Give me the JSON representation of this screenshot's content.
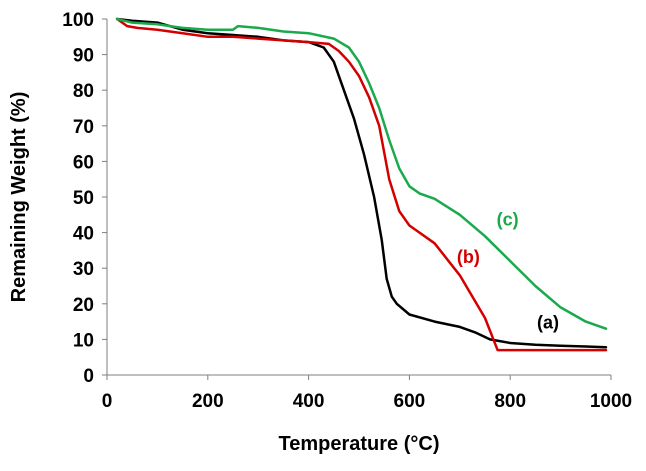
{
  "chart_data": {
    "type": "line",
    "title": "",
    "xlabel": "Temperature (°C)",
    "ylabel": "Remaining Weight (%)",
    "xlim": [
      0,
      1000
    ],
    "ylim": [
      0,
      100
    ],
    "x_ticks": [
      "0",
      "200",
      "400",
      "600",
      "800",
      "1000"
    ],
    "y_ticks": [
      "0",
      "10",
      "20",
      "30",
      "40",
      "50",
      "60",
      "70",
      "80",
      "90",
      "100"
    ],
    "grid": false,
    "legend": "none",
    "series": [
      {
        "name": "(a)",
        "color": "#000000",
        "x": [
          20,
          50,
          100,
          150,
          200,
          250,
          300,
          350,
          400,
          430,
          450,
          470,
          490,
          510,
          530,
          545,
          555,
          565,
          575,
          600,
          650,
          700,
          730,
          760,
          800,
          850,
          900,
          950,
          990
        ],
        "y": [
          100,
          99.5,
          99,
          97,
          96,
          95.5,
          95,
          94,
          93.5,
          92,
          88,
          80,
          72,
          62,
          50,
          38,
          27,
          22,
          20,
          17,
          15,
          13.5,
          12,
          10,
          9,
          8.5,
          8.2,
          8,
          7.8
        ]
      },
      {
        "name": "(b)",
        "color": "#d40000",
        "x": [
          20,
          40,
          60,
          100,
          150,
          200,
          250,
          300,
          350,
          400,
          440,
          460,
          480,
          500,
          520,
          540,
          560,
          580,
          600,
          620,
          650,
          700,
          750,
          775,
          800,
          850,
          900,
          950,
          990
        ],
        "y": [
          100,
          98,
          97.5,
          97,
          96,
          95,
          95,
          94.5,
          94,
          93.5,
          93,
          91,
          88,
          84,
          78,
          70,
          55,
          46,
          42,
          40,
          37,
          28,
          16,
          7,
          7,
          7,
          7,
          7,
          7
        ]
      },
      {
        "name": "(c)",
        "color": "#1aaa4b",
        "x": [
          20,
          50,
          100,
          150,
          200,
          250,
          260,
          300,
          350,
          400,
          450,
          480,
          500,
          520,
          540,
          560,
          580,
          600,
          620,
          650,
          700,
          750,
          800,
          850,
          900,
          950,
          990
        ],
        "y": [
          100,
          99,
          98.5,
          97.5,
          97,
          97,
          98,
          97.5,
          96.5,
          96,
          94.5,
          92,
          88,
          82,
          75,
          66,
          58,
          53,
          51,
          49.5,
          45,
          39,
          32,
          25,
          19,
          15,
          13
        ]
      }
    ],
    "annotations": [
      {
        "series": "(a)",
        "text": "(a)",
        "x": 875,
        "y": 13
      },
      {
        "series": "(b)",
        "text": "(b)",
        "x": 717,
        "y": 31.5
      },
      {
        "series": "(c)",
        "text": "(c)",
        "x": 795,
        "y": 42
      }
    ]
  }
}
